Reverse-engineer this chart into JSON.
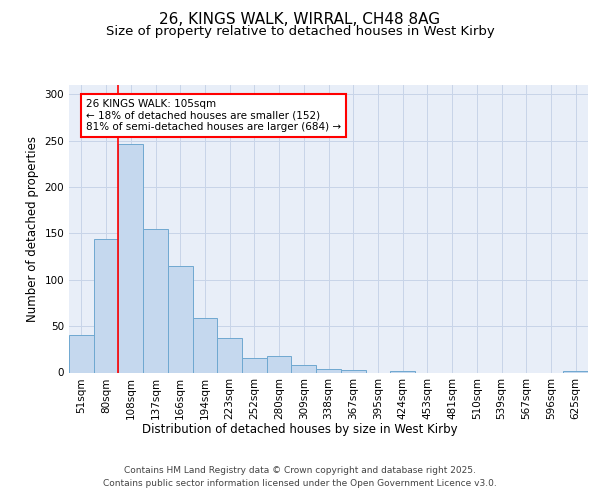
{
  "title1": "26, KINGS WALK, WIRRAL, CH48 8AG",
  "title2": "Size of property relative to detached houses in West Kirby",
  "xlabel": "Distribution of detached houses by size in West Kirby",
  "ylabel": "Number of detached properties",
  "categories": [
    "51sqm",
    "80sqm",
    "108sqm",
    "137sqm",
    "166sqm",
    "194sqm",
    "223sqm",
    "252sqm",
    "280sqm",
    "309sqm",
    "338sqm",
    "367sqm",
    "395sqm",
    "424sqm",
    "453sqm",
    "481sqm",
    "510sqm",
    "539sqm",
    "567sqm",
    "596sqm",
    "625sqm"
  ],
  "values": [
    40,
    144,
    246,
    155,
    115,
    59,
    37,
    16,
    18,
    8,
    4,
    3,
    0,
    2,
    0,
    0,
    0,
    0,
    0,
    0,
    2
  ],
  "bar_color": "#c5d8ee",
  "bar_edge_color": "#6fa8d0",
  "grid_color": "#c8d4e8",
  "bg_color": "#e8eef8",
  "fig_bg_color": "#ffffff",
  "red_line_x": 1.5,
  "annotation_text": "26 KINGS WALK: 105sqm\n← 18% of detached houses are smaller (152)\n81% of semi-detached houses are larger (684) →",
  "annotation_box_color": "white",
  "annotation_box_edge": "red",
  "footer": "Contains HM Land Registry data © Crown copyright and database right 2025.\nContains public sector information licensed under the Open Government Licence v3.0.",
  "ylim": [
    0,
    310
  ],
  "yticks": [
    0,
    50,
    100,
    150,
    200,
    250,
    300
  ],
  "title1_fontsize": 11,
  "title2_fontsize": 9.5,
  "ylabel_fontsize": 8.5,
  "xlabel_fontsize": 8.5,
  "tick_fontsize": 7.5,
  "annotation_fontsize": 7.5,
  "footer_fontsize": 6.5
}
